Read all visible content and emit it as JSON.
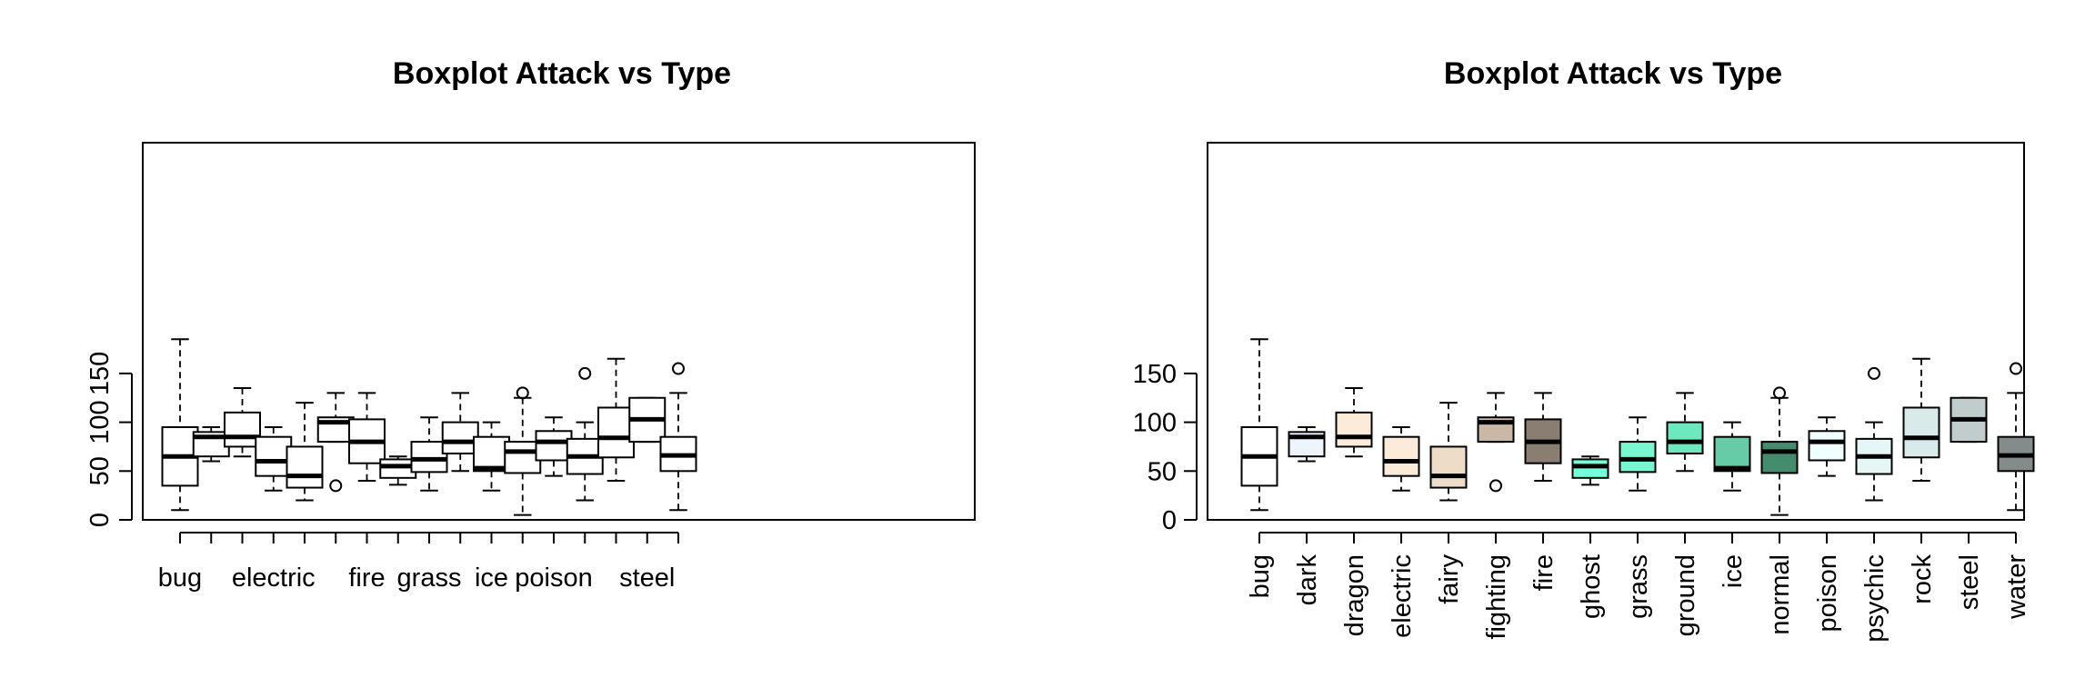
{
  "chart_data": [
    {
      "type": "boxplot",
      "title": "Boxplot Attack vs Type",
      "xlabel": "",
      "ylabel": "",
      "ylim": [
        0,
        190
      ],
      "yticks": [
        0,
        50,
        100,
        150
      ],
      "y_tick_labels_rotated": true,
      "x_tick_labels_shown": [
        "bug",
        "electric",
        "fire",
        "grass",
        "ice",
        "poison",
        "steel"
      ],
      "grid": false,
      "categories": [
        "bug",
        "dark",
        "dragon",
        "electric",
        "fairy",
        "fighting",
        "fire",
        "ghost",
        "grass",
        "ground",
        "ice",
        "normal",
        "poison",
        "psychic",
        "rock",
        "steel",
        "water"
      ],
      "boxes": [
        {
          "category": "bug",
          "min": 10,
          "q1": 35,
          "median": 65,
          "q3": 95,
          "max": 185,
          "outliers": [],
          "fill": "#ffffff"
        },
        {
          "category": "dark",
          "min": 60,
          "q1": 65,
          "median": 85,
          "q3": 90,
          "max": 95,
          "outliers": [],
          "fill": "#ffffff"
        },
        {
          "category": "dragon",
          "min": 65,
          "q1": 75,
          "median": 85,
          "q3": 110,
          "max": 135,
          "outliers": [],
          "fill": "#ffffff"
        },
        {
          "category": "electric",
          "min": 30,
          "q1": 45,
          "median": 60,
          "q3": 85,
          "max": 95,
          "outliers": [],
          "fill": "#ffffff"
        },
        {
          "category": "fairy",
          "min": 20,
          "q1": 33,
          "median": 45,
          "q3": 75,
          "max": 120,
          "outliers": [],
          "fill": "#ffffff"
        },
        {
          "category": "fighting",
          "min": 80,
          "q1": 80,
          "median": 100,
          "q3": 105,
          "max": 130,
          "outliers": [
            35
          ],
          "fill": "#ffffff"
        },
        {
          "category": "fire",
          "min": 40,
          "q1": 58,
          "median": 80,
          "q3": 103,
          "max": 130,
          "outliers": [],
          "fill": "#ffffff"
        },
        {
          "category": "ghost",
          "min": 36,
          "q1": 43,
          "median": 55,
          "q3": 62,
          "max": 65,
          "outliers": [],
          "fill": "#ffffff"
        },
        {
          "category": "grass",
          "min": 30,
          "q1": 49,
          "median": 62,
          "q3": 80,
          "max": 105,
          "outliers": [],
          "fill": "#ffffff"
        },
        {
          "category": "ground",
          "min": 50,
          "q1": 68,
          "median": 80,
          "q3": 100,
          "max": 130,
          "outliers": [],
          "fill": "#ffffff"
        },
        {
          "category": "ice",
          "min": 30,
          "q1": 50,
          "median": 53,
          "q3": 85,
          "max": 100,
          "outliers": [],
          "fill": "#ffffff"
        },
        {
          "category": "normal",
          "min": 5,
          "q1": 48,
          "median": 70,
          "q3": 80,
          "max": 125,
          "outliers": [
            130
          ],
          "fill": "#ffffff"
        },
        {
          "category": "poison",
          "min": 45,
          "q1": 61,
          "median": 80,
          "q3": 91,
          "max": 105,
          "outliers": [],
          "fill": "#ffffff"
        },
        {
          "category": "psychic",
          "min": 20,
          "q1": 47,
          "median": 65,
          "q3": 83,
          "max": 100,
          "outliers": [
            150
          ],
          "fill": "#ffffff"
        },
        {
          "category": "rock",
          "min": 40,
          "q1": 64,
          "median": 84,
          "q3": 115,
          "max": 165,
          "outliers": [],
          "fill": "#ffffff"
        },
        {
          "category": "steel",
          "min": 80,
          "q1": 80,
          "median": 103,
          "q3": 125,
          "max": 125,
          "outliers": [],
          "fill": "#ffffff"
        },
        {
          "category": "water",
          "min": 10,
          "q1": 50,
          "median": 66,
          "q3": 85,
          "max": 130,
          "outliers": [
            155
          ],
          "fill": "#ffffff"
        }
      ]
    },
    {
      "type": "boxplot",
      "title": "Boxplot Attack vs Type",
      "xlabel": "",
      "ylabel": "",
      "ylim": [
        0,
        190
      ],
      "yticks": [
        0,
        50,
        100,
        150
      ],
      "y_tick_labels_rotated": false,
      "x_tick_labels_shown": [
        "bug",
        "dark",
        "dragon",
        "electric",
        "fairy",
        "fighting",
        "fire",
        "ghost",
        "grass",
        "ground",
        "ice",
        "normal",
        "poison",
        "psychic",
        "rock",
        "steel",
        "water"
      ],
      "x_tick_labels_vertical": true,
      "grid": false,
      "categories": [
        "bug",
        "dark",
        "dragon",
        "electric",
        "fairy",
        "fighting",
        "fire",
        "ghost",
        "grass",
        "ground",
        "ice",
        "normal",
        "poison",
        "psychic",
        "rock",
        "steel",
        "water"
      ],
      "boxes": [
        {
          "category": "bug",
          "min": 10,
          "q1": 35,
          "median": 65,
          "q3": 95,
          "max": 185,
          "outliers": [],
          "fill": "#ffffff"
        },
        {
          "category": "dark",
          "min": 60,
          "q1": 65,
          "median": 85,
          "q3": 90,
          "max": 95,
          "outliers": [],
          "fill": "#eef4fc"
        },
        {
          "category": "dragon",
          "min": 65,
          "q1": 75,
          "median": 85,
          "q3": 110,
          "max": 135,
          "outliers": [],
          "fill": "#fbebd8"
        },
        {
          "category": "electric",
          "min": 30,
          "q1": 45,
          "median": 60,
          "q3": 85,
          "max": 95,
          "outliers": [],
          "fill": "#fbebd8"
        },
        {
          "category": "fairy",
          "min": 20,
          "q1": 33,
          "median": 45,
          "q3": 75,
          "max": 120,
          "outliers": [],
          "fill": "#eddcc8"
        },
        {
          "category": "fighting",
          "min": 80,
          "q1": 80,
          "median": 100,
          "q3": 105,
          "max": 130,
          "outliers": [
            35
          ],
          "fill": "#c9b8a6"
        },
        {
          "category": "fire",
          "min": 40,
          "q1": 58,
          "median": 80,
          "q3": 103,
          "max": 130,
          "outliers": [],
          "fill": "#8a7d72"
        },
        {
          "category": "ghost",
          "min": 36,
          "q1": 43,
          "median": 55,
          "q3": 62,
          "max": 65,
          "outliers": [],
          "fill": "#76ffd8"
        },
        {
          "category": "grass",
          "min": 30,
          "q1": 49,
          "median": 62,
          "q3": 80,
          "max": 105,
          "outliers": [],
          "fill": "#79f7d0"
        },
        {
          "category": "ground",
          "min": 50,
          "q1": 68,
          "median": 80,
          "q3": 100,
          "max": 130,
          "outliers": [],
          "fill": "#6ee8bf"
        },
        {
          "category": "ice",
          "min": 30,
          "q1": 50,
          "median": 53,
          "q3": 85,
          "max": 100,
          "outliers": [],
          "fill": "#66cca8"
        },
        {
          "category": "normal",
          "min": 5,
          "q1": 48,
          "median": 70,
          "q3": 80,
          "max": 125,
          "outliers": [
            130
          ],
          "fill": "#458b6e"
        },
        {
          "category": "poison",
          "min": 45,
          "q1": 61,
          "median": 80,
          "q3": 91,
          "max": 105,
          "outliers": [],
          "fill": "#f0ffff"
        },
        {
          "category": "psychic",
          "min": 20,
          "q1": 47,
          "median": 65,
          "q3": 83,
          "max": 100,
          "outliers": [
            150
          ],
          "fill": "#e6f5f5"
        },
        {
          "category": "rock",
          "min": 40,
          "q1": 64,
          "median": 84,
          "q3": 115,
          "max": 165,
          "outliers": [],
          "fill": "#d8eaea"
        },
        {
          "category": "steel",
          "min": 80,
          "q1": 80,
          "median": 103,
          "q3": 125,
          "max": 125,
          "outliers": [],
          "fill": "#c1cdcd"
        },
        {
          "category": "water",
          "min": 10,
          "q1": 50,
          "median": 66,
          "q3": 85,
          "max": 130,
          "outliers": [
            155
          ],
          "fill": "#838b8b"
        }
      ]
    }
  ]
}
